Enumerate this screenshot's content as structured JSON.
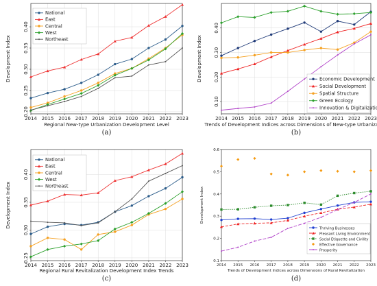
{
  "chart_data": [
    {
      "id": "a",
      "type": "line",
      "caption": "(a)",
      "xlabel": "Regional New-type Urbanization Development Level",
      "ylabel": "Development Index",
      "x": [
        2014,
        2015,
        2016,
        2017,
        2018,
        2019,
        2020,
        2021,
        2022,
        2023
      ],
      "xlim": [
        2014,
        2023
      ],
      "ylim": [
        0.195,
        0.455
      ],
      "yticks": [
        0.2,
        0.25,
        0.3,
        0.35,
        0.4
      ],
      "yticklabels": [
        "0.20",
        "0.25",
        "0.30",
        "0.35",
        "0.40"
      ],
      "grid": true,
      "legend": "top-left",
      "series": [
        {
          "name": "National",
          "color": "#2b5c8a",
          "marker": "circle",
          "values": [
            0.232,
            0.244,
            0.253,
            0.268,
            0.287,
            0.312,
            0.324,
            0.35,
            0.37,
            0.402
          ]
        },
        {
          "name": "East",
          "color": "#ee3333",
          "marker": "triangle",
          "values": [
            0.282,
            0.296,
            0.305,
            0.323,
            0.336,
            0.366,
            0.375,
            0.403,
            0.424,
            0.452
          ]
        },
        {
          "name": "Central",
          "color": "#f5a020",
          "marker": "circle",
          "values": [
            0.21,
            0.221,
            0.236,
            0.25,
            0.268,
            0.29,
            0.302,
            0.325,
            0.35,
            0.381
          ]
        },
        {
          "name": "West",
          "color": "#2ca02c",
          "marker": "diamond",
          "values": [
            0.203,
            0.217,
            0.23,
            0.243,
            0.262,
            0.286,
            0.302,
            0.322,
            0.348,
            0.384
          ]
        },
        {
          "name": "Northeast",
          "color": "#555555",
          "marker": "small",
          "values": [
            0.204,
            0.214,
            0.224,
            0.236,
            0.255,
            0.28,
            0.284,
            0.31,
            0.318,
            0.35
          ]
        }
      ]
    },
    {
      "id": "b",
      "type": "line",
      "caption": "(b)",
      "xlabel": "Trends of Development Indices across Dimensions of New-type Urbanization",
      "ylabel": "Development Index",
      "x": [
        2014,
        2015,
        2016,
        2017,
        2018,
        2019,
        2020,
        2021,
        2022,
        2023
      ],
      "xlim": [
        2014,
        2023
      ],
      "ylim": [
        0.05,
        0.5
      ],
      "yticks": [
        0.1,
        0.2,
        0.3,
        0.4
      ],
      "yticklabels": [
        "0.10",
        "0.20",
        "0.30",
        "0.40"
      ],
      "grid": true,
      "legend": "bottom-right",
      "series": [
        {
          "name": "Economic Development",
          "color": "#1f3a78",
          "marker": "circle",
          "values": [
            0.287,
            0.318,
            0.347,
            0.373,
            0.397,
            0.422,
            0.385,
            0.428,
            0.414,
            0.466
          ]
        },
        {
          "name": "Social Development",
          "color": "#ee2020",
          "marker": "triangle",
          "values": [
            0.215,
            0.233,
            0.253,
            0.282,
            0.308,
            0.333,
            0.357,
            0.383,
            0.398,
            0.418
          ]
        },
        {
          "name": "Spatial Structure",
          "color": "#f5a020",
          "marker": "circle",
          "values": [
            0.278,
            0.28,
            0.289,
            0.3,
            0.3,
            0.31,
            0.318,
            0.312,
            0.34,
            0.385
          ]
        },
        {
          "name": "Green Ecology",
          "color": "#2ca02c",
          "marker": "diamond",
          "values": [
            0.421,
            0.446,
            0.443,
            0.463,
            0.468,
            0.489,
            0.468,
            0.456,
            0.458,
            0.463
          ]
        },
        {
          "name": "Innovation & Digitalization",
          "color": "#b040c8",
          "marker": "small",
          "values": [
            0.065,
            0.072,
            0.078,
            0.094,
            0.142,
            0.192,
            0.242,
            0.29,
            0.335,
            0.372
          ]
        }
      ]
    },
    {
      "id": "c",
      "type": "line",
      "caption": "(c)",
      "xlabel": "Regional Rural Revitalization Development Index Trends",
      "ylabel": "Development Index",
      "x": [
        2014,
        2015,
        2016,
        2017,
        2018,
        2019,
        2020,
        2021,
        2022,
        2023
      ],
      "xlim": [
        2014,
        2023
      ],
      "ylim": [
        0.245,
        0.445
      ],
      "yticks": [
        0.25,
        0.3,
        0.35,
        0.4
      ],
      "yticklabels": [
        "0.25",
        "0.30",
        "0.35",
        "0.40"
      ],
      "grid": true,
      "legend": "top-left",
      "series": [
        {
          "name": "National",
          "color": "#2b5c8a",
          "marker": "circle",
          "values": [
            0.293,
            0.306,
            0.311,
            0.309,
            0.314,
            0.333,
            0.344,
            0.361,
            0.375,
            0.395
          ]
        },
        {
          "name": "East",
          "color": "#ee3333",
          "marker": "triangle",
          "values": [
            0.345,
            0.352,
            0.364,
            0.363,
            0.367,
            0.389,
            0.396,
            0.408,
            0.419,
            0.438
          ]
        },
        {
          "name": "Central",
          "color": "#f5a020",
          "marker": "circle",
          "values": [
            0.271,
            0.286,
            0.283,
            0.265,
            0.292,
            0.297,
            0.309,
            0.328,
            0.338,
            0.356
          ]
        },
        {
          "name": "West",
          "color": "#2ca02c",
          "marker": "diamond",
          "values": [
            0.252,
            0.265,
            0.271,
            0.275,
            0.281,
            0.302,
            0.314,
            0.33,
            0.348,
            0.369
          ]
        },
        {
          "name": "Northeast",
          "color": "#555555",
          "marker": "small",
          "values": [
            0.316,
            0.314,
            0.313,
            0.308,
            0.313,
            0.333,
            0.356,
            0.388,
            0.402,
            0.416
          ]
        }
      ]
    },
    {
      "id": "d",
      "type": "line",
      "caption": "(d)",
      "xlabel": "Trends of Development Indices across Dimensions of Rural Revitalization",
      "ylabel": "Development Index",
      "x": [
        2014,
        2015,
        2016,
        2017,
        2018,
        2019,
        2020,
        2021,
        2022,
        2023
      ],
      "xlim": [
        2014,
        2023
      ],
      "ylim": [
        0.1,
        0.6
      ],
      "yticks": [
        0.1,
        0.2,
        0.3,
        0.4,
        0.5,
        0.6
      ],
      "yticklabels": [
        "0.1",
        "0.2",
        "0.3",
        "0.4",
        "0.5",
        "0.6"
      ],
      "grid": false,
      "legend": "bottom-left",
      "series": [
        {
          "name": "Thriving Businesses",
          "color": "#1f3fd0",
          "marker": "circle",
          "dash": "",
          "values": [
            0.283,
            0.288,
            0.289,
            0.285,
            0.291,
            0.315,
            0.332,
            0.348,
            0.362,
            0.365
          ]
        },
        {
          "name": "Pleasant Living Environment",
          "color": "#ee2020",
          "marker": "triangle",
          "dash": "4,2",
          "values": [
            0.252,
            0.265,
            0.268,
            0.27,
            0.281,
            0.3,
            0.315,
            0.331,
            0.341,
            0.354
          ]
        },
        {
          "name": "Social Etiquette and Civility",
          "color": "#2a8a2a",
          "marker": "square",
          "dash": "1.5,1.5",
          "values": [
            0.33,
            0.331,
            0.34,
            0.347,
            0.35,
            0.36,
            0.352,
            0.392,
            0.404,
            0.412
          ]
        },
        {
          "name": "Effective Governance",
          "color": "#f59a10",
          "marker": "diamond",
          "dash": "none",
          "values": [
            0.525,
            0.555,
            0.56,
            0.49,
            0.485,
            0.5,
            0.505,
            0.502,
            0.5,
            0.505
          ]
        },
        {
          "name": "Prosperity",
          "color": "#b040c8",
          "marker": "small",
          "dash": "5,2",
          "values": [
            0.143,
            0.16,
            0.188,
            0.205,
            0.245,
            0.268,
            0.295,
            0.33,
            0.362,
            0.4
          ]
        }
      ]
    }
  ]
}
